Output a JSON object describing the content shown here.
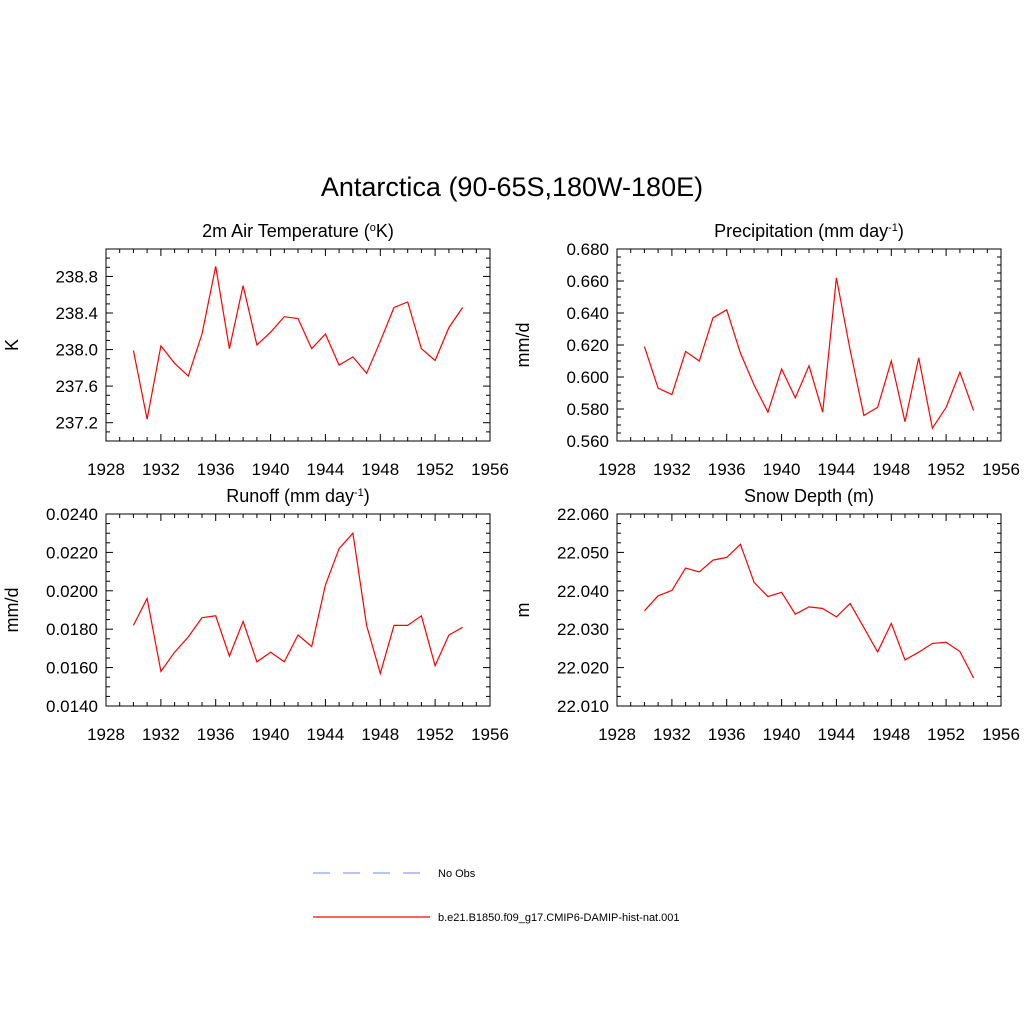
{
  "figure": {
    "title": "Antarctica (90-65S,180W-180E)"
  },
  "legend": [
    {
      "label": "No Obs",
      "color": "#9999ff",
      "dash": true
    },
    {
      "label": "b.e21.B1850.f09_g17.CMIP6-DAMIP-hist-nat.001",
      "color": "#ff0000",
      "dash": false
    }
  ],
  "chart_data": [
    {
      "type": "line",
      "title": "2m Air Temperature (",
      "title_sup": "o",
      "title_after": "K)",
      "ylabel": "K",
      "xlim": [
        1928,
        1956
      ],
      "ylim": [
        237.0,
        239.1
      ],
      "xticks": [
        1928,
        1932,
        1936,
        1940,
        1944,
        1948,
        1952,
        1956
      ],
      "yticks": [
        237.2,
        237.6,
        238.0,
        238.4,
        238.8
      ],
      "ytick_labels": [
        "237.2",
        "237.6",
        "238.0",
        "238.4",
        "238.8"
      ],
      "xminor": 1,
      "yminor": 0.1,
      "series": [
        {
          "color": "#ff0000",
          "x": [
            1930,
            1931,
            1932,
            1933,
            1934,
            1935,
            1936,
            1937,
            1938,
            1939,
            1940,
            1941,
            1942,
            1943,
            1944,
            1945,
            1946,
            1947,
            1948,
            1949,
            1950,
            1951,
            1952,
            1953,
            1954
          ],
          "y": [
            237.99,
            237.24,
            238.04,
            237.85,
            237.71,
            238.17,
            238.91,
            238.01,
            238.7,
            238.05,
            238.19,
            238.36,
            238.34,
            238.01,
            238.17,
            237.83,
            237.92,
            237.74,
            238.09,
            238.46,
            238.52,
            238.01,
            237.88,
            238.24,
            238.46
          ]
        }
      ]
    },
    {
      "type": "line",
      "title": "Precipitation (mm day",
      "title_sup": "-1",
      "title_after": ")",
      "ylabel": "mm/d",
      "xlim": [
        1928,
        1956
      ],
      "ylim": [
        0.56,
        0.68
      ],
      "xticks": [
        1928,
        1932,
        1936,
        1940,
        1944,
        1948,
        1952,
        1956
      ],
      "yticks": [
        0.56,
        0.58,
        0.6,
        0.62,
        0.64,
        0.66,
        0.68
      ],
      "ytick_labels": [
        "0.560",
        "0.580",
        "0.600",
        "0.620",
        "0.640",
        "0.660",
        "0.680"
      ],
      "xminor": 1,
      "yminor": 0.005,
      "series": [
        {
          "color": "#ff0000",
          "x": [
            1930,
            1931,
            1932,
            1933,
            1934,
            1935,
            1936,
            1937,
            1938,
            1939,
            1940,
            1941,
            1942,
            1943,
            1944,
            1945,
            1946,
            1947,
            1948,
            1949,
            1950,
            1951,
            1952,
            1953,
            1954
          ],
          "y": [
            0.619,
            0.593,
            0.589,
            0.616,
            0.61,
            0.637,
            0.642,
            0.615,
            0.595,
            0.578,
            0.605,
            0.587,
            0.607,
            0.578,
            0.662,
            0.617,
            0.576,
            0.581,
            0.61,
            0.572,
            0.612,
            0.568,
            0.581,
            0.603,
            0.579
          ]
        }
      ]
    },
    {
      "type": "line",
      "title": "Runoff (mm day",
      "title_sup": "-1",
      "title_after": ")",
      "ylabel": "mm/d",
      "xlim": [
        1928,
        1956
      ],
      "ylim": [
        0.014,
        0.024
      ],
      "xticks": [
        1928,
        1932,
        1936,
        1940,
        1944,
        1948,
        1952,
        1956
      ],
      "yticks": [
        0.014,
        0.016,
        0.018,
        0.02,
        0.022,
        0.024
      ],
      "ytick_labels": [
        "0.0140",
        "0.0160",
        "0.0180",
        "0.0200",
        "0.0220",
        "0.0240"
      ],
      "xminor": 1,
      "yminor": 0.0005,
      "series": [
        {
          "color": "#ff0000",
          "x": [
            1930,
            1931,
            1932,
            1933,
            1934,
            1935,
            1936,
            1937,
            1938,
            1939,
            1940,
            1941,
            1942,
            1943,
            1944,
            1945,
            1946,
            1947,
            1948,
            1949,
            1950,
            1951,
            1952,
            1953,
            1954
          ],
          "y": [
            0.0182,
            0.0196,
            0.0158,
            0.0168,
            0.0176,
            0.0186,
            0.0187,
            0.0166,
            0.0184,
            0.0163,
            0.0168,
            0.0163,
            0.0177,
            0.0171,
            0.0203,
            0.0222,
            0.023,
            0.0182,
            0.0157,
            0.0182,
            0.0182,
            0.0187,
            0.0161,
            0.0177,
            0.0181
          ]
        }
      ]
    },
    {
      "type": "line",
      "title": "Snow Depth (m)",
      "title_sup": "",
      "title_after": "",
      "ylabel": "m",
      "xlim": [
        1928,
        1956
      ],
      "ylim": [
        22.01,
        22.06
      ],
      "xticks": [
        1928,
        1932,
        1936,
        1940,
        1944,
        1948,
        1952,
        1956
      ],
      "yticks": [
        22.01,
        22.02,
        22.03,
        22.04,
        22.05,
        22.06
      ],
      "ytick_labels": [
        "22.010",
        "22.020",
        "22.030",
        "22.040",
        "22.050",
        "22.060"
      ],
      "xminor": 1,
      "yminor": 0.0025,
      "series": [
        {
          "color": "#ff0000",
          "x": [
            1930,
            1931,
            1932,
            1933,
            1934,
            1935,
            1936,
            1937,
            1938,
            1939,
            1940,
            1941,
            1942,
            1943,
            1944,
            1945,
            1946,
            1947,
            1948,
            1949,
            1950,
            1951,
            1952,
            1953,
            1954
          ],
          "y": [
            22.0348,
            22.0387,
            22.0401,
            22.0459,
            22.0449,
            22.048,
            22.0487,
            22.0521,
            22.0422,
            22.0385,
            22.0396,
            22.0339,
            22.0358,
            22.0354,
            22.0332,
            22.0367,
            22.0304,
            22.0241,
            22.0315,
            22.022,
            22.024,
            22.0263,
            22.0266,
            22.0242,
            22.0173
          ]
        }
      ]
    }
  ]
}
